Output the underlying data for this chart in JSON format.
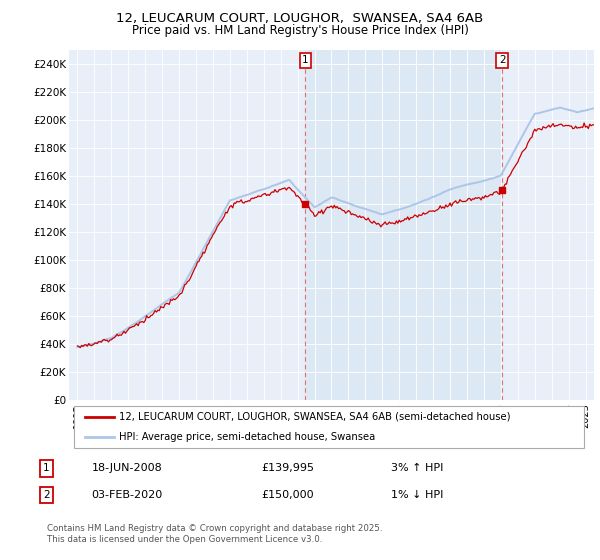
{
  "title": "12, LEUCARUM COURT, LOUGHOR,  SWANSEA, SA4 6AB",
  "subtitle": "Price paid vs. HM Land Registry's House Price Index (HPI)",
  "ylabel_ticks": [
    "£0",
    "£20K",
    "£40K",
    "£60K",
    "£80K",
    "£100K",
    "£120K",
    "£140K",
    "£160K",
    "£180K",
    "£200K",
    "£220K",
    "£240K"
  ],
  "ytick_values": [
    0,
    20000,
    40000,
    60000,
    80000,
    100000,
    120000,
    140000,
    160000,
    180000,
    200000,
    220000,
    240000
  ],
  "ylim": [
    0,
    250000
  ],
  "xlim_start": 1994.5,
  "xlim_end": 2025.5,
  "x_years": [
    1995,
    1996,
    1997,
    1998,
    1999,
    2000,
    2001,
    2002,
    2003,
    2004,
    2005,
    2006,
    2007,
    2008,
    2009,
    2010,
    2011,
    2012,
    2013,
    2014,
    2015,
    2016,
    2017,
    2018,
    2019,
    2020,
    2021,
    2022,
    2023,
    2024,
    2025
  ],
  "hpi_line_color": "#adc6e8",
  "price_line_color": "#cc0000",
  "vline_color": "#e07070",
  "shade_color": "#dde8f5",
  "background_color": "#e8eff8",
  "sale1_x": 2008.46,
  "sale1_price": 139995,
  "sale2_x": 2020.09,
  "sale2_price": 150000,
  "legend_line1": "12, LEUCARUM COURT, LOUGHOR, SWANSEA, SA4 6AB (semi-detached house)",
  "legend_line2": "HPI: Average price, semi-detached house, Swansea",
  "table_row1_num": "1",
  "table_row1_date": "18-JUN-2008",
  "table_row1_price": "£139,995",
  "table_row1_hpi": "3% ↑ HPI",
  "table_row2_num": "2",
  "table_row2_date": "03-FEB-2020",
  "table_row2_price": "£150,000",
  "table_row2_hpi": "1% ↓ HPI",
  "footnote": "Contains HM Land Registry data © Crown copyright and database right 2025.\nThis data is licensed under the Open Government Licence v3.0."
}
